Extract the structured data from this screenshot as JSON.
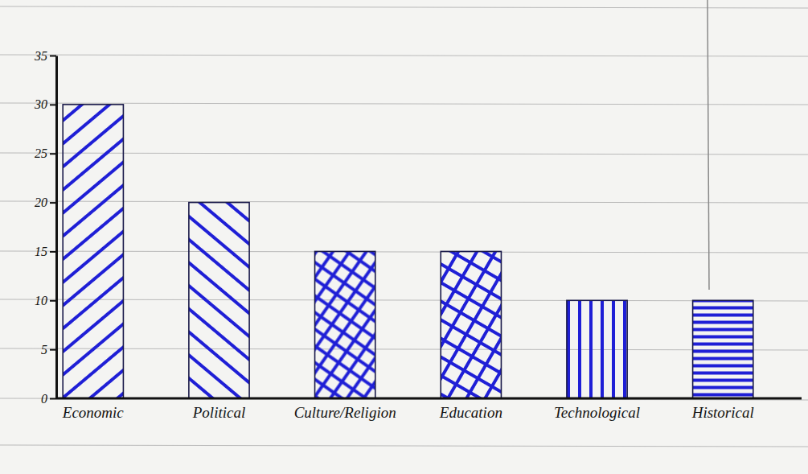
{
  "chart_data": {
    "type": "bar",
    "categories": [
      "Economic",
      "Political",
      "Culture/Religion",
      "Education",
      "Technological",
      "Historical"
    ],
    "values": [
      30,
      20,
      15,
      15,
      10,
      10
    ],
    "color": "#1f1fd6",
    "ylim": [
      0,
      35
    ],
    "yticks": [
      0,
      5,
      10,
      15,
      20,
      25,
      30,
      35
    ],
    "grid": false
  }
}
